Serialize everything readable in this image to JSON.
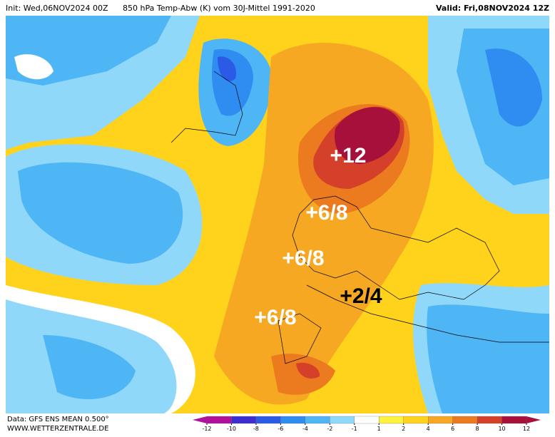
{
  "header": {
    "init": "Init: Wed,06NOV2024 00Z",
    "title": "850 hPa Temp-Abw (K) vom 30J-Mittel 1991-2020",
    "valid": "Valid: Fri,08NOV2024 12Z"
  },
  "annotations": [
    {
      "text": "+12",
      "dark": false
    },
    {
      "text": "+6/8",
      "dark": false
    },
    {
      "text": "+6/8",
      "dark": false
    },
    {
      "text": "+2/4",
      "dark": true
    },
    {
      "text": "+6/8",
      "dark": false
    }
  ],
  "footer": {
    "data": "Data: GFS ENS MEAN 0.500°",
    "site": "WWW.WETTERZENTRALE.DE"
  },
  "colorbar": {
    "ticks": [
      -12,
      -10,
      -8,
      -6,
      -4,
      -2,
      -1,
      1,
      2,
      4,
      6,
      8,
      10,
      12
    ],
    "colors": [
      "#b0109a",
      "#3c2ed0",
      "#2a5ae6",
      "#2f8cf0",
      "#4fb6f5",
      "#8fd8fa",
      "#ffffff",
      "#fff23c",
      "#ffd21c",
      "#f7a823",
      "#ec7a1e",
      "#d4402a",
      "#a8103c"
    ]
  }
}
